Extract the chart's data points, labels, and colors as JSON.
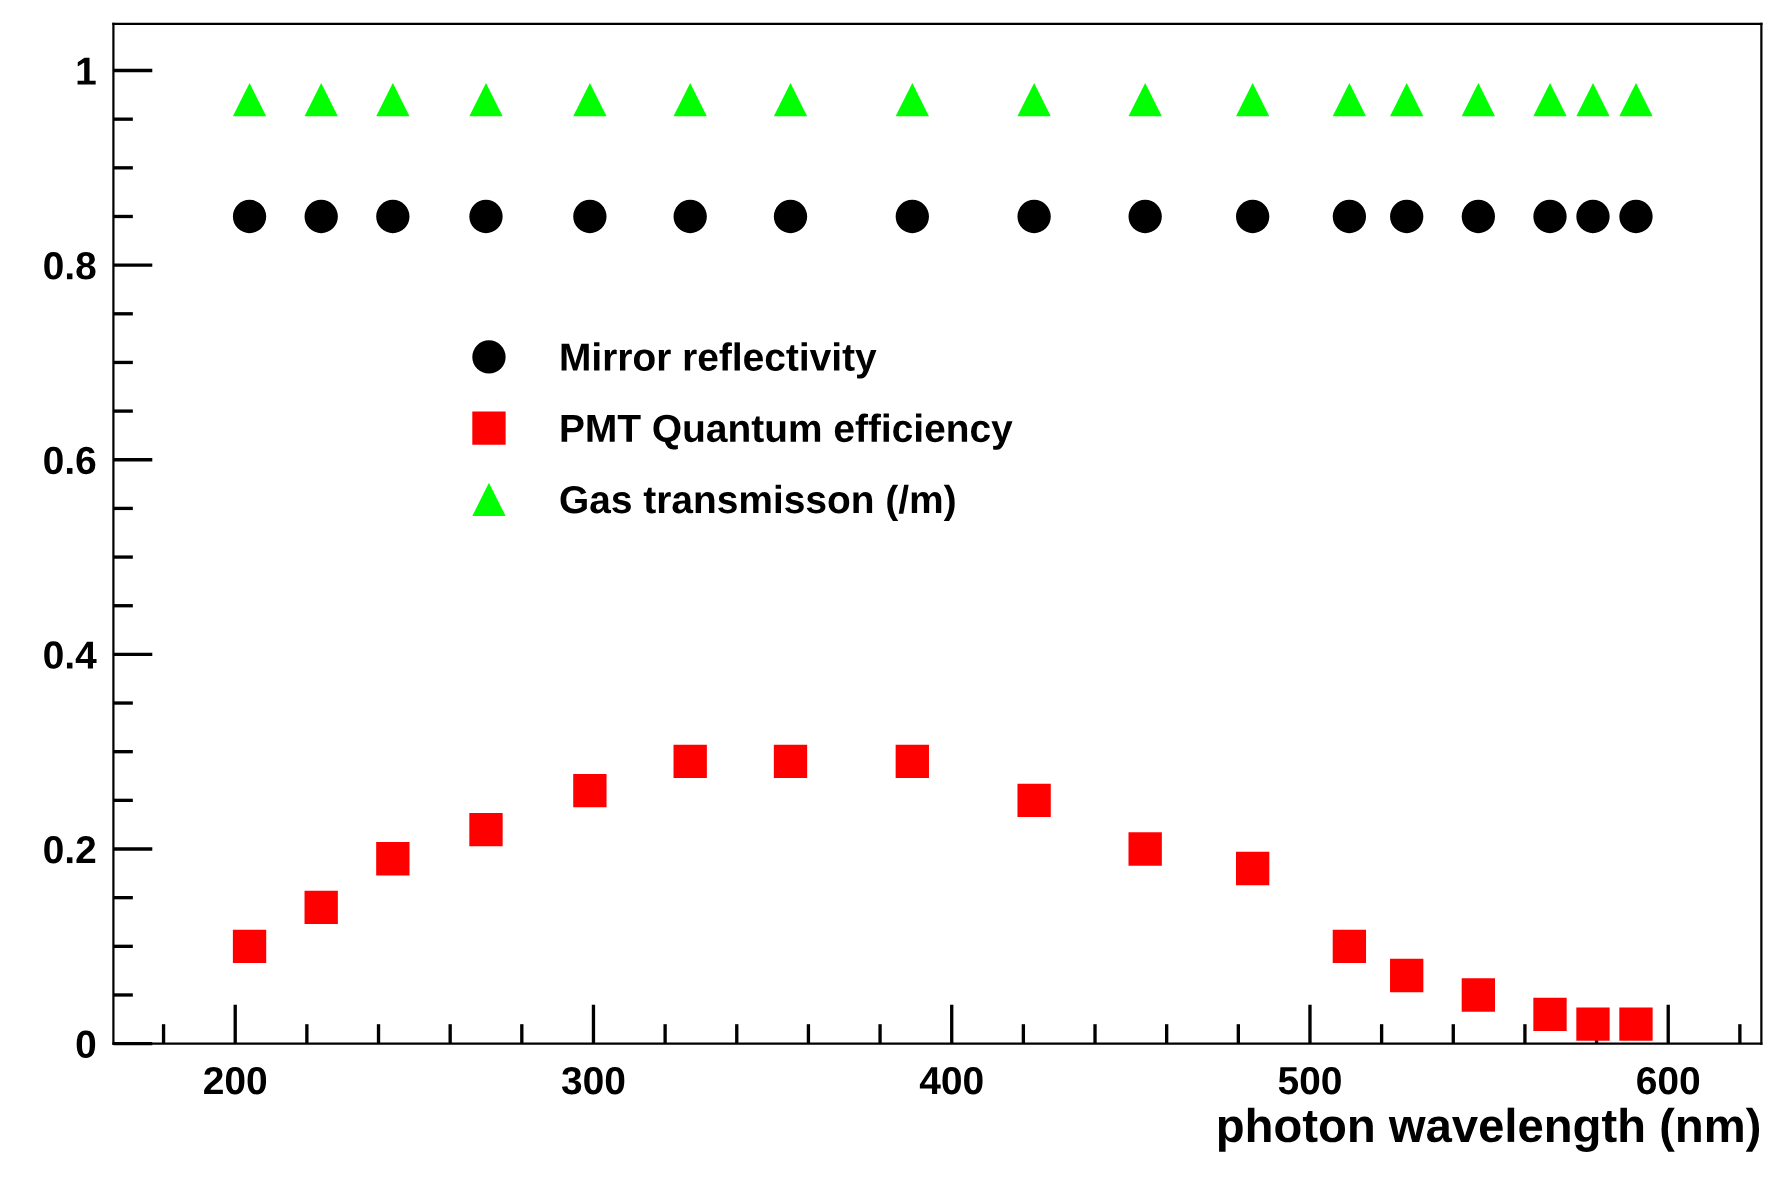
{
  "chart_data": {
    "type": "scatter",
    "xlabel": "photon wavelength (nm)",
    "x": [
      204,
      224,
      244,
      270,
      299,
      327,
      355,
      389,
      423,
      454,
      484,
      511,
      527,
      547,
      567,
      579,
      591
    ],
    "series": [
      {
        "name": "Mirror reflectivity",
        "color": "#000000",
        "marker": "circle",
        "values": [
          0.85,
          0.85,
          0.85,
          0.85,
          0.85,
          0.85,
          0.85,
          0.85,
          0.85,
          0.85,
          0.85,
          0.85,
          0.85,
          0.85,
          0.85,
          0.85,
          0.85
        ]
      },
      {
        "name": "PMT Quantum efficiency",
        "color": "#ff0000",
        "marker": "square",
        "values": [
          0.1,
          0.14,
          0.19,
          0.22,
          0.26,
          0.29,
          0.29,
          0.29,
          0.25,
          0.2,
          0.18,
          0.1,
          0.07,
          0.05,
          0.03,
          0.02,
          0.02
        ]
      },
      {
        "name": "Gas transmisson (/m)",
        "color": "#00ff00",
        "marker": "triangle",
        "values": [
          0.97,
          0.97,
          0.97,
          0.97,
          0.97,
          0.97,
          0.97,
          0.97,
          0.97,
          0.97,
          0.97,
          0.97,
          0.97,
          0.97,
          0.97,
          0.97,
          0.97
        ]
      }
    ],
    "xlim": [
      166,
      626
    ],
    "xticks": [
      {
        "value": 180,
        "label": null
      },
      200,
      {
        "value": 220,
        "label": null
      },
      {
        "value": 240,
        "label": null
      },
      {
        "value": 260,
        "label": null
      },
      {
        "value": 280,
        "label": null
      },
      300,
      {
        "value": 320,
        "label": null
      },
      {
        "value": 340,
        "label": null
      },
      {
        "value": 360,
        "label": null
      },
      {
        "value": 380,
        "label": null
      },
      400,
      {
        "value": 420,
        "label": null
      },
      {
        "value": 440,
        "label": null
      },
      {
        "value": 460,
        "label": null
      },
      {
        "value": 480,
        "label": null
      },
      500,
      {
        "value": 520,
        "label": null
      },
      {
        "value": 540,
        "label": null
      },
      {
        "value": 560,
        "label": null
      },
      {
        "value": 580,
        "label": null
      },
      600,
      {
        "value": 620,
        "label": null
      }
    ],
    "ylim": [
      0,
      1.048
    ],
    "yticks": [
      0,
      {
        "value": 0.05,
        "label": null
      },
      {
        "value": 0.1,
        "label": null
      },
      {
        "value": 0.15,
        "label": null
      },
      0.2,
      {
        "value": 0.25,
        "label": null
      },
      {
        "value": 0.3,
        "label": null
      },
      {
        "value": 0.35,
        "label": null
      },
      0.4,
      {
        "value": 0.45,
        "label": null
      },
      {
        "value": 0.5,
        "label": null
      },
      {
        "value": 0.55,
        "label": null
      },
      0.6,
      {
        "value": 0.65,
        "label": null
      },
      {
        "value": 0.7,
        "label": null
      },
      {
        "value": 0.75,
        "label": null
      },
      0.8,
      {
        "value": 0.85,
        "label": null
      },
      {
        "value": 0.9,
        "label": null
      },
      {
        "value": 0.95,
        "label": null
      },
      1
    ],
    "legend": "center"
  }
}
